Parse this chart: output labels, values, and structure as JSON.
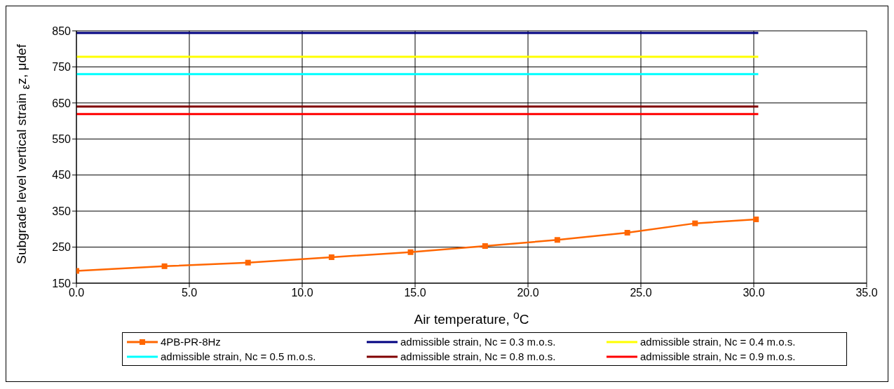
{
  "chart_data": {
    "type": "line",
    "xlabel": "Air temperature, $^{o}$C",
    "ylabel": "Subgrade level vertical strain $_{ε}$z, μdef",
    "series": [
      {
        "name": "4PB-PR-8Hz",
        "color": "#ff6600",
        "marker": "square",
        "x": [
          0,
          3.9,
          7.6,
          11.3,
          14.8,
          18.1,
          21.3,
          24.4,
          27.4,
          30.1
        ],
        "values": [
          184,
          197,
          207,
          222,
          236,
          253,
          270,
          290,
          316,
          327
        ]
      },
      {
        "name": "admissible strain, Nc = 0.3 m.o.s.",
        "color": "#000080",
        "marker": "none",
        "x": [
          0,
          30.2
        ],
        "values": [
          844,
          844
        ]
      },
      {
        "name": "admissible strain, Nc = 0.4 m.o.s.",
        "color": "#ffff00",
        "marker": "none",
        "x": [
          0,
          30.2
        ],
        "values": [
          778,
          778
        ]
      },
      {
        "name": "admissible strain, Nc = 0.5 m.o.s.",
        "color": "#00ffff",
        "marker": "none",
        "x": [
          0,
          30.2
        ],
        "values": [
          730,
          730
        ]
      },
      {
        "name": "admissible strain, Nc = 0.8 m.o.s.",
        "color": "#800000",
        "marker": "none",
        "x": [
          0,
          30.2
        ],
        "values": [
          640,
          640
        ]
      },
      {
        "name": "admissible strain, Nc = 0.9 m.o.s.",
        "color": "#ff0000",
        "marker": "none",
        "x": [
          0,
          30.2
        ],
        "values": [
          619,
          619
        ]
      }
    ],
    "xlim": [
      0,
      35
    ],
    "xticks": [
      {
        "value": 0,
        "label": "0.0"
      },
      {
        "value": 5,
        "label": "5.0"
      },
      {
        "value": 10,
        "label": "10.0"
      },
      {
        "value": 15,
        "label": "15.0"
      },
      {
        "value": 20,
        "label": "20.0"
      },
      {
        "value": 25,
        "label": "25.0"
      },
      {
        "value": 30,
        "label": "30.0"
      },
      {
        "value": 35,
        "label": "35.0"
      }
    ],
    "ylim": [
      150,
      850
    ],
    "yticks": [
      150,
      250,
      350,
      450,
      550,
      650,
      750,
      850
    ],
    "grid": true,
    "legend": "bottom",
    "line_style": "solid"
  }
}
